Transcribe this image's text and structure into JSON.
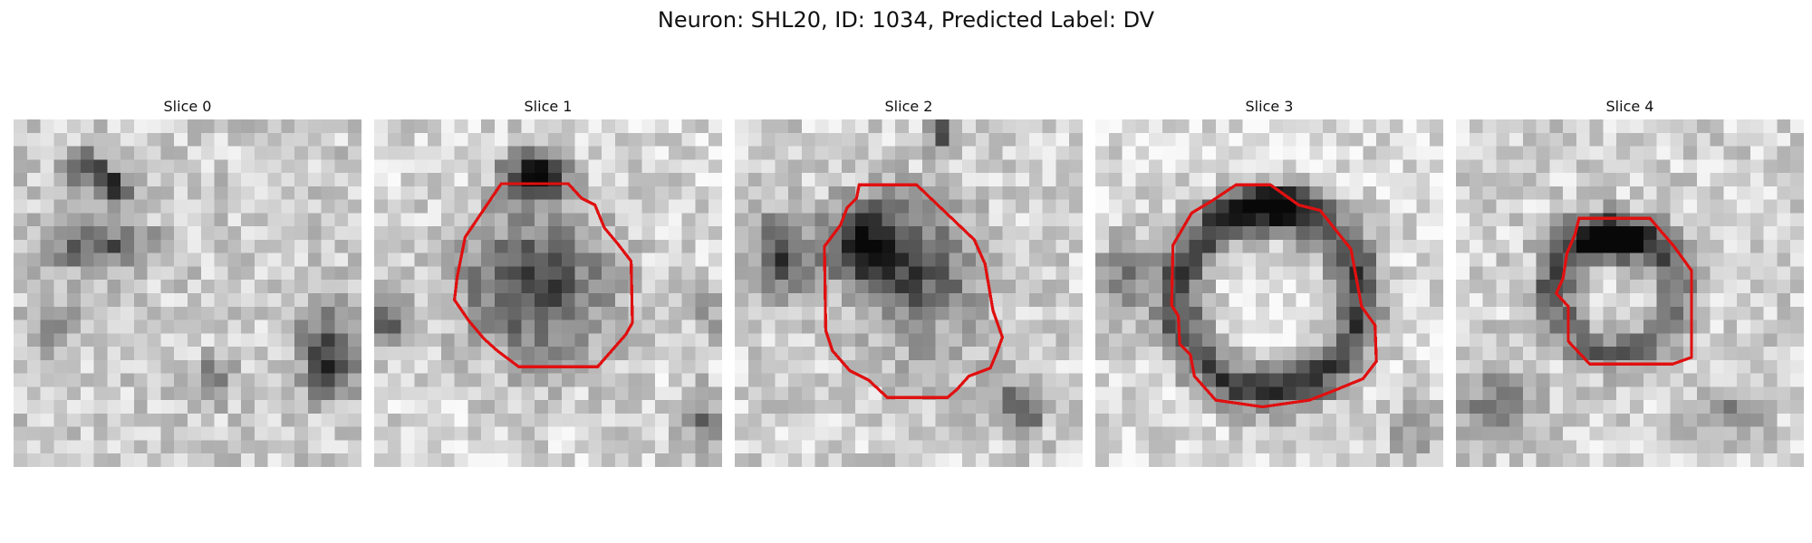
{
  "figure": {
    "title": "Neuron: SHL20, ID: 1034, Predicted Label: DV"
  },
  "panels": [
    {
      "title": "Slice 0",
      "has_contour": false
    },
    {
      "title": "Slice 1",
      "has_contour": true
    },
    {
      "title": "Slice 2",
      "has_contour": true
    },
    {
      "title": "Slice 3",
      "has_contour": true
    },
    {
      "title": "Slice 4",
      "has_contour": true
    }
  ],
  "colors": {
    "contour": "#e01010"
  }
}
